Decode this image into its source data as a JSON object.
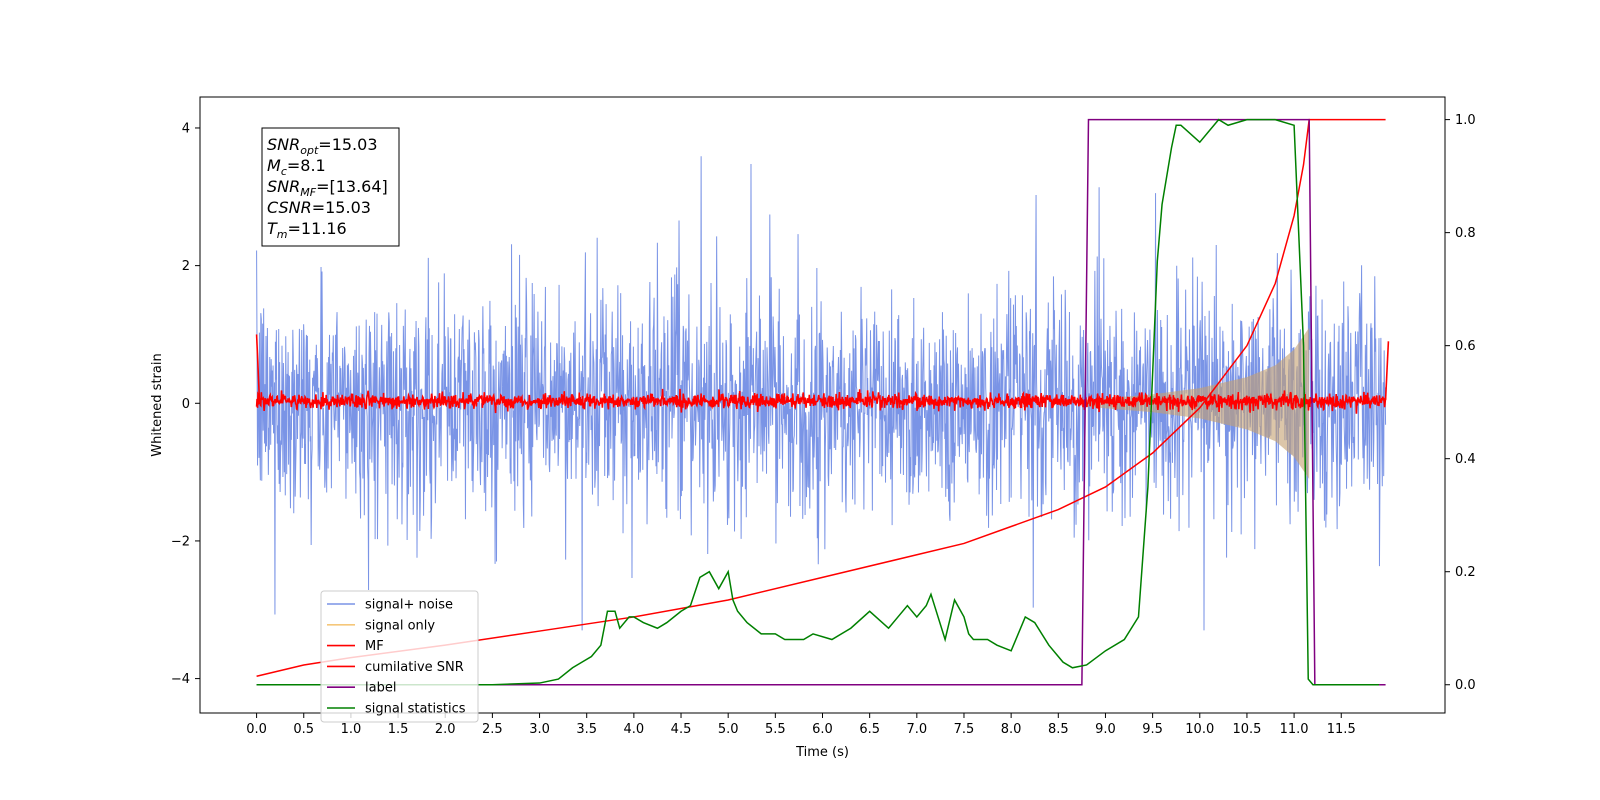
{
  "chart_data": {
    "type": "line",
    "xlabel": "Time (s)",
    "ylabel": "Whitened strain",
    "xlim": [
      -0.6,
      12.6
    ],
    "ylim": [
      -4.5,
      4.45
    ],
    "y2lim": [
      -0.05,
      1.04
    ],
    "x_ticks": [
      0.0,
      0.5,
      1.0,
      1.5,
      2.0,
      2.5,
      3.0,
      3.5,
      4.0,
      4.5,
      5.0,
      5.5,
      6.0,
      6.5,
      7.0,
      7.5,
      8.0,
      8.5,
      9.0,
      9.5,
      10.0,
      10.5,
      11.0,
      11.5
    ],
    "x_tick_labels": [
      "0.0",
      "0.5",
      "1.0",
      "1.5",
      "2.0",
      "2.5",
      "3.0",
      "3.5",
      "4.0",
      "4.5",
      "5.0",
      "5.5",
      "6.0",
      "6.5",
      "7.0",
      "7.5",
      "8.0",
      "8.5",
      "9.0",
      "9.5",
      "10.0",
      "10.5",
      "11.0",
      "11.5"
    ],
    "y_ticks": [
      -4,
      -2,
      0,
      2,
      4
    ],
    "y_tick_labels": [
      "−4",
      "−2",
      "0",
      "2",
      "4"
    ],
    "y2_ticks": [
      0.0,
      0.2,
      0.4,
      0.6,
      0.8,
      1.0
    ],
    "y2_tick_labels": [
      "0.0",
      "0.2",
      "0.4",
      "0.6",
      "0.8",
      "1.0"
    ],
    "grid": false,
    "legend_placement": "lower-left",
    "info_box": {
      "lines": [
        {
          "sym": "SNR",
          "sub": "opt",
          "rest": "=15.03"
        },
        {
          "sym": "M",
          "sub": "c",
          "rest": "=8.1"
        },
        {
          "sym": "SNR",
          "sub": "MF",
          "rest": "=[13.64]"
        },
        {
          "sym": "CSNR",
          "sub": "",
          "rest": "=15.03"
        },
        {
          "sym": "T",
          "sub": "m",
          "rest": "=11.16"
        }
      ]
    },
    "noise": {
      "t_start": 0.0,
      "t_end": 11.97,
      "band_typical": [
        -1.6,
        1.6
      ],
      "peak_max": 3.65,
      "peak_min": -3.3
    },
    "signal_envelope": {
      "t_start": 8.8,
      "t_end": 11.16,
      "amplitude_points": [
        [
          8.8,
          0.05
        ],
        [
          9.5,
          0.13
        ],
        [
          10.0,
          0.22
        ],
        [
          10.5,
          0.38
        ],
        [
          10.8,
          0.55
        ],
        [
          11.0,
          0.78
        ],
        [
          11.16,
          1.1
        ]
      ]
    },
    "series": [
      {
        "name": "signal+ noise",
        "color": "#7a94e6",
        "axis": "left",
        "kind": "noise"
      },
      {
        "name": "signal only",
        "color": "#f5c77a",
        "axis": "left",
        "kind": "chirp"
      },
      {
        "name": "MF",
        "color": "#ff0000",
        "axis": "left",
        "kind": "mf",
        "x": [
          0.0,
          0.03,
          11.97,
          12.0
        ],
        "y": [
          1.0,
          0.05,
          0.05,
          0.9
        ]
      },
      {
        "name": "cumilative SNR",
        "color": "#ff0000",
        "axis": "right",
        "x": [
          0.0,
          0.5,
          1.0,
          2.0,
          3.0,
          4.0,
          5.0,
          6.0,
          7.0,
          7.5,
          8.0,
          8.5,
          9.0,
          9.5,
          10.0,
          10.5,
          10.8,
          11.0,
          11.1,
          11.16,
          11.17,
          11.97
        ],
        "y": [
          0.015,
          0.035,
          0.048,
          0.07,
          0.095,
          0.12,
          0.15,
          0.19,
          0.23,
          0.25,
          0.28,
          0.31,
          0.35,
          0.41,
          0.49,
          0.6,
          0.71,
          0.83,
          0.92,
          1.0,
          1.0,
          1.0
        ]
      },
      {
        "name": "label",
        "color": "#800080",
        "axis": "right",
        "x": [
          0.0,
          8.75,
          8.82,
          11.16,
          11.22,
          11.97
        ],
        "y": [
          0.0,
          0.0,
          1.0,
          1.0,
          0.0,
          0.0
        ]
      },
      {
        "name": "signal statistics",
        "color": "#008000",
        "axis": "right",
        "x": [
          0.0,
          1.0,
          2.0,
          2.5,
          3.0,
          3.2,
          3.35,
          3.45,
          3.55,
          3.65,
          3.72,
          3.8,
          3.85,
          3.95,
          4.0,
          4.1,
          4.25,
          4.35,
          4.5,
          4.6,
          4.7,
          4.8,
          4.9,
          5.0,
          5.05,
          5.1,
          5.2,
          5.35,
          5.5,
          5.6,
          5.8,
          5.9,
          6.1,
          6.3,
          6.5,
          6.7,
          6.8,
          6.9,
          7.0,
          7.1,
          7.15,
          7.3,
          7.4,
          7.5,
          7.55,
          7.6,
          7.75,
          7.85,
          8.0,
          8.15,
          8.25,
          8.4,
          8.55,
          8.65,
          8.8,
          9.0,
          9.2,
          9.35,
          9.45,
          9.55,
          9.6,
          9.7,
          9.75,
          9.8,
          10.0,
          10.1,
          10.2,
          10.3,
          10.5,
          10.8,
          11.0,
          11.1,
          11.15,
          11.2,
          11.3,
          11.5,
          11.9
        ],
        "y": [
          0.0,
          0.0,
          0.0,
          0.0,
          0.003,
          0.01,
          0.03,
          0.04,
          0.05,
          0.07,
          0.13,
          0.13,
          0.1,
          0.12,
          0.12,
          0.11,
          0.1,
          0.11,
          0.13,
          0.14,
          0.19,
          0.2,
          0.17,
          0.2,
          0.15,
          0.13,
          0.11,
          0.09,
          0.09,
          0.08,
          0.08,
          0.09,
          0.08,
          0.1,
          0.13,
          0.1,
          0.12,
          0.14,
          0.12,
          0.14,
          0.16,
          0.08,
          0.15,
          0.12,
          0.09,
          0.08,
          0.08,
          0.07,
          0.06,
          0.12,
          0.11,
          0.07,
          0.04,
          0.03,
          0.035,
          0.06,
          0.08,
          0.12,
          0.35,
          0.75,
          0.85,
          0.95,
          0.99,
          0.99,
          0.96,
          0.98,
          1.0,
          0.99,
          1.0,
          1.0,
          0.99,
          0.6,
          0.01,
          0.0,
          0.0,
          0.0,
          0.0
        ]
      }
    ]
  }
}
